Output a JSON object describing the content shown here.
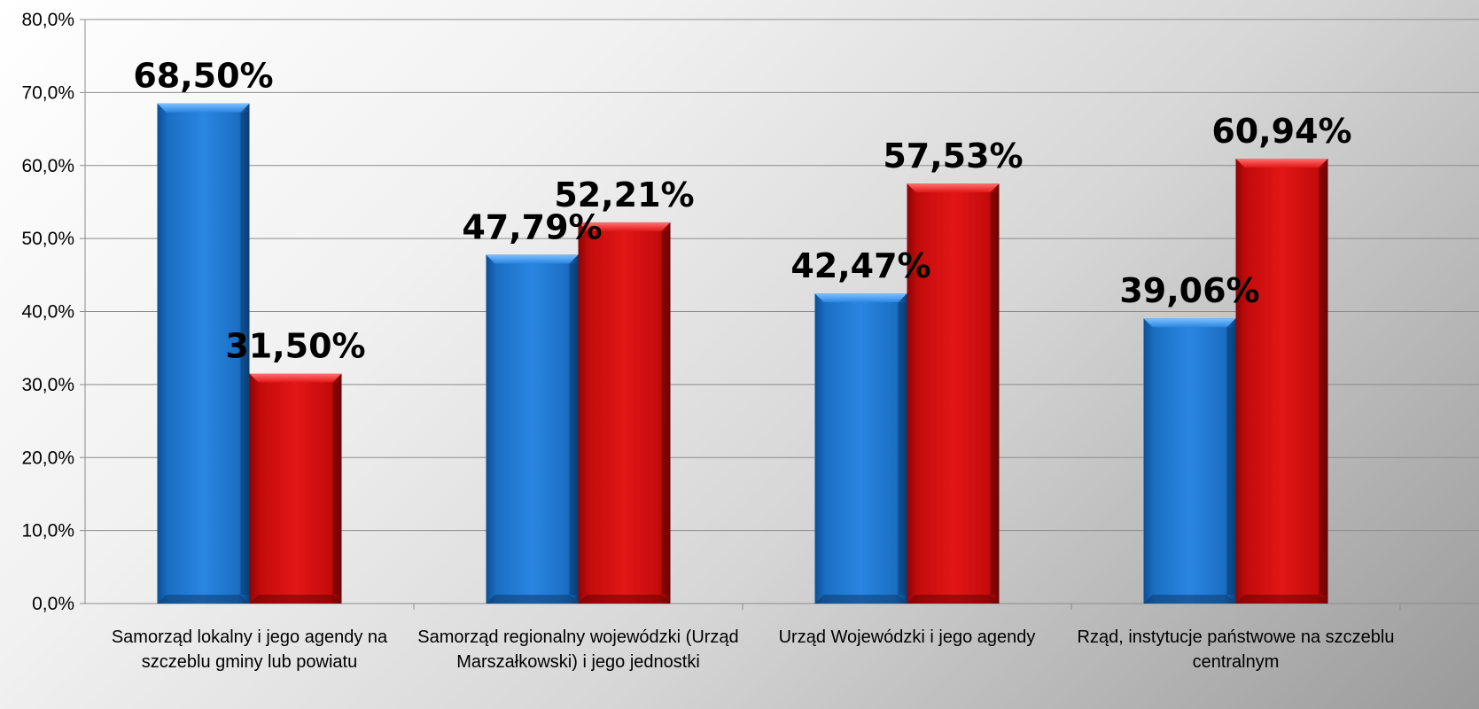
{
  "chart_data": {
    "type": "bar",
    "title": "",
    "xlabel": "",
    "ylabel": "",
    "ylim": [
      0,
      80
    ],
    "y_ticks": [
      "0,0%",
      "10,0%",
      "20,0%",
      "30,0%",
      "40,0%",
      "50,0%",
      "60,0%",
      "70,0%",
      "80,0%"
    ],
    "grid": true,
    "legend": "none",
    "categories": [
      [
        "Samorząd lokalny i jego agendy na",
        "szczeblu gminy lub powiatu"
      ],
      [
        "Samorząd regionalny wojewódzki (Urząd",
        "Marszałkowski) i jego jednostki"
      ],
      [
        "Urząd Wojewódzki i jego agendy"
      ],
      [
        "Rząd, instytucje państwowe na szczeblu",
        "centralnym"
      ]
    ],
    "series": [
      {
        "color": "#1f74c8",
        "values": [
          68.5,
          47.79,
          42.47,
          39.06
        ],
        "labels": [
          "68,50%",
          "47,79%",
          "42,47%",
          "39,06%"
        ]
      },
      {
        "color": "#d10c0c",
        "values": [
          31.5,
          52.21,
          57.53,
          60.94
        ],
        "labels": [
          "31,50%",
          "52,21%",
          "57,53%",
          "60,94%"
        ]
      }
    ]
  }
}
